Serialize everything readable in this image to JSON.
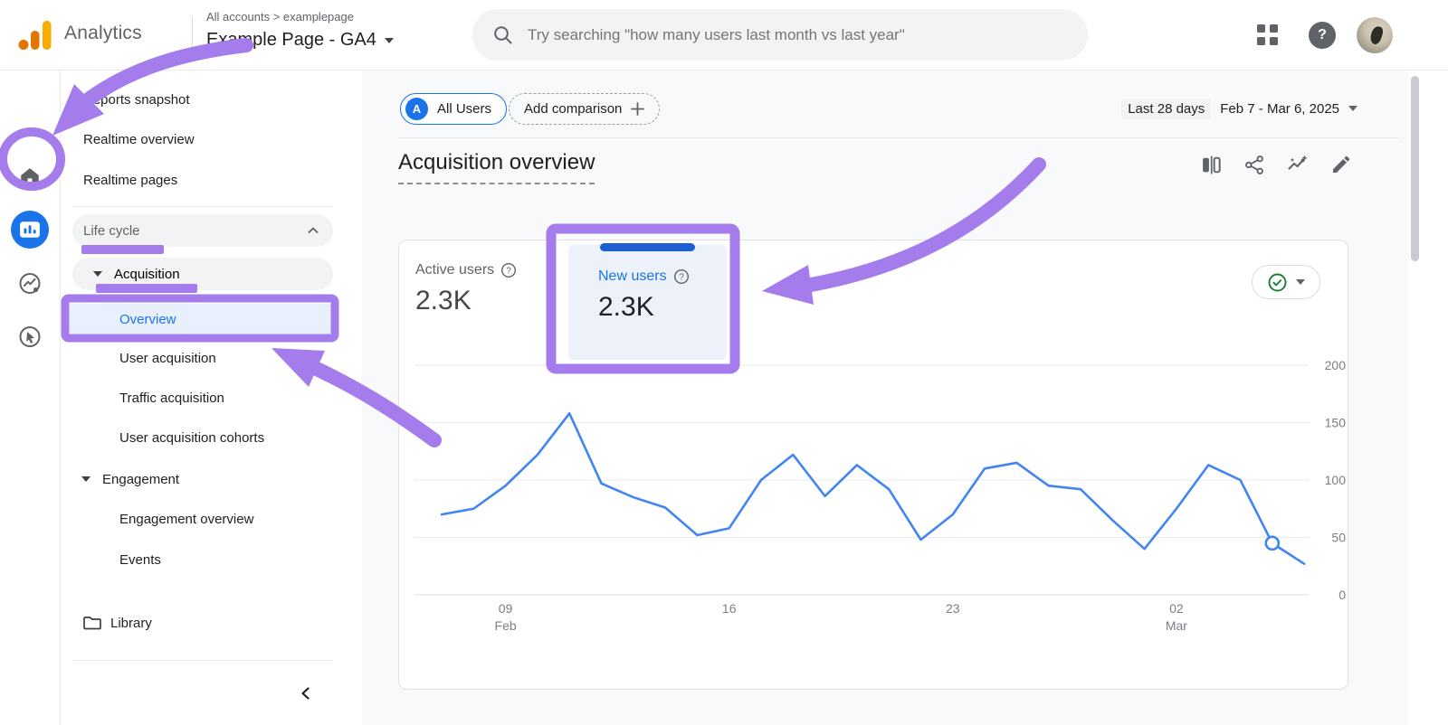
{
  "colors": {
    "annotation_purple": "#a57ceb",
    "accent_blue": "#1a73e8",
    "indicator_blue": "#1b5fd0",
    "selected_bg": "#e8f0fe",
    "chart_line": "#4184f3",
    "success_green": "#188038",
    "logo_orange": "#e37400",
    "logo_amber": "#f9ab00"
  },
  "header": {
    "product_name": "Analytics",
    "breadcrumb": "All accounts > examplepage",
    "property_selector": "Example Page - GA4",
    "search_placeholder": "Try searching \"how many users last month vs last year\""
  },
  "icons": {
    "question_mark": "?"
  },
  "sidebar": {
    "items": [
      {
        "label": "Reports snapshot"
      },
      {
        "label": "Realtime overview"
      },
      {
        "label": "Realtime pages"
      },
      {
        "label": "Life cycle"
      },
      {
        "label": "Acquisition"
      },
      {
        "label": "Overview"
      },
      {
        "label": "User acquisition"
      },
      {
        "label": "Traffic acquisition"
      },
      {
        "label": "User acquisition cohorts"
      },
      {
        "label": "Engagement"
      },
      {
        "label": "Engagement overview"
      },
      {
        "label": "Events"
      },
      {
        "label": "Library"
      }
    ]
  },
  "toolbar": {
    "segment_chip_initial": "A",
    "segment_chip_label": "All Users",
    "add_comparison_label": "Add comparison",
    "date_preset": "Last 28 days",
    "date_range": "Feb 7 - Mar 6, 2025"
  },
  "page": {
    "title": "Acquisition overview"
  },
  "card": {
    "metrics": [
      {
        "label": "Active users",
        "value": "2.3K"
      },
      {
        "label": "New users",
        "value": "2.3K"
      }
    ]
  },
  "chart_data": {
    "type": "line",
    "series_name": "New users",
    "x": [
      "Feb 7",
      "Feb 8",
      "Feb 9",
      "Feb 10",
      "Feb 11",
      "Feb 12",
      "Feb 13",
      "Feb 14",
      "Feb 15",
      "Feb 16",
      "Feb 17",
      "Feb 18",
      "Feb 19",
      "Feb 20",
      "Feb 21",
      "Feb 22",
      "Feb 23",
      "Feb 24",
      "Feb 25",
      "Feb 26",
      "Feb 27",
      "Feb 28",
      "Mar 1",
      "Mar 2",
      "Mar 3",
      "Mar 4",
      "Mar 5",
      "Mar 6"
    ],
    "values": [
      70,
      75,
      95,
      122,
      158,
      97,
      85,
      76,
      52,
      58,
      100,
      122,
      86,
      113,
      92,
      48,
      70,
      110,
      115,
      95,
      92,
      65,
      40,
      75,
      113,
      100,
      45,
      27
    ],
    "ylim": [
      0,
      200
    ],
    "yticks": [
      0,
      50,
      100,
      150,
      200
    ],
    "x_ticks": [
      {
        "index": 2,
        "label": "09",
        "sublabel": "Feb"
      },
      {
        "index": 9,
        "label": "16",
        "sublabel": ""
      },
      {
        "index": 16,
        "label": "23",
        "sublabel": ""
      },
      {
        "index": 23,
        "label": "02",
        "sublabel": "Mar"
      }
    ],
    "marker_index": 26,
    "grid": "horizontal",
    "legend": "none"
  }
}
